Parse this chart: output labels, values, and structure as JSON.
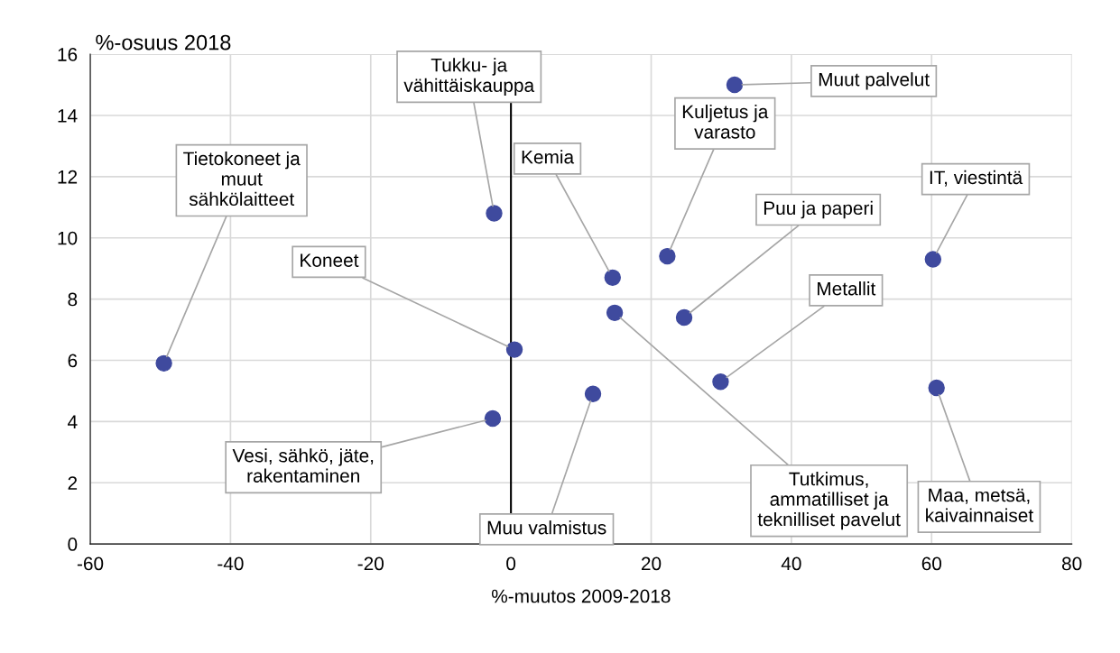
{
  "chart_data": {
    "type": "scatter",
    "title": "%-osuus 2018",
    "xlabel": "%-muutos 2009-2018",
    "x": [
      -49.5,
      -2.4,
      0.5,
      -2.6,
      11.7,
      14.5,
      14.8,
      22.3,
      24.7,
      29.9,
      31.9,
      60.2,
      60.7
    ],
    "series": [
      {
        "color": "#3f4a9e",
        "values": [
          5.9,
          10.8,
          6.35,
          4.1,
          4.9,
          8.7,
          7.55,
          9.4,
          7.4,
          5.3,
          15.0,
          9.3,
          5.1
        ]
      }
    ],
    "xlim": [
      -60,
      80
    ],
    "xticks": [
      -60,
      -40,
      -20,
      0,
      20,
      40,
      60,
      80
    ],
    "ylim": [
      0,
      16
    ],
    "yticks": [
      0,
      2,
      4,
      6,
      8,
      10,
      12,
      14,
      16
    ],
    "grid": true,
    "marker": "circle",
    "legend": false,
    "ref_lines": [
      {
        "axis": "x",
        "value": 0,
        "color": "#000000"
      }
    ],
    "annotations": [
      {
        "text": "Tietokoneet ja\nmuut\nsähkölaitteet",
        "x": -49.5,
        "y": 5.9
      },
      {
        "text": "Tukku- ja\nvähittäiskauppa",
        "x": -2.4,
        "y": 10.8
      },
      {
        "text": "Koneet",
        "x": 0.5,
        "y": 6.35
      },
      {
        "text": "Vesi, sähkö, jäte,\nrakentaminen",
        "x": -2.6,
        "y": 4.1
      },
      {
        "text": "Muu valmistus",
        "x": 11.7,
        "y": 4.9
      },
      {
        "text": "Kemia",
        "x": 14.5,
        "y": 8.7
      },
      {
        "text": "Tutkimus,\nammatilliset ja\nteknilliset pavelut",
        "x": 14.8,
        "y": 7.55
      },
      {
        "text": "Kuljetus ja\nvarasto",
        "x": 22.3,
        "y": 9.4
      },
      {
        "text": "Puu ja paperi",
        "x": 24.7,
        "y": 7.4
      },
      {
        "text": "Metallit",
        "x": 29.9,
        "y": 5.3
      },
      {
        "text": "Muut palvelut",
        "x": 31.9,
        "y": 15.0
      },
      {
        "text": "IT, viestintä",
        "x": 60.2,
        "y": 9.3
      },
      {
        "text": "Maa, metsä,\nkaivainnaiset",
        "x": 60.7,
        "y": 5.1
      }
    ]
  }
}
